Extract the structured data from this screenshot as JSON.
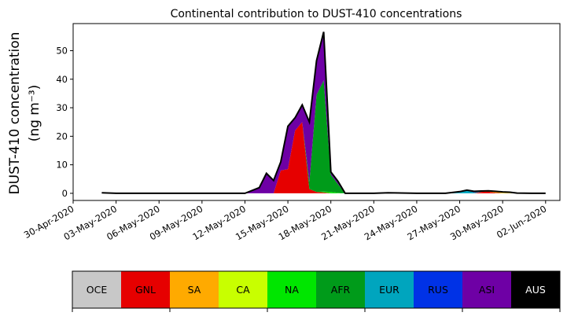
{
  "chart_data": {
    "type": "area",
    "stacked": true,
    "title": "Continental contribution to DUST-410 concentrations",
    "ylabel_line1": "DUST-410 concentration",
    "ylabel_line2": "(ng m⁻³)",
    "xlabel": "",
    "ylim": [
      -2.5,
      59.5
    ],
    "yticks": [
      0,
      10,
      20,
      30,
      40,
      50
    ],
    "xlim": [
      "2020-04-30",
      "2020-06-03"
    ],
    "xticks": [
      "30-Apr-2020",
      "03-May-2020",
      "06-May-2020",
      "09-May-2020",
      "12-May-2020",
      "15-May-2020",
      "18-May-2020",
      "21-May-2020",
      "24-May-2020",
      "27-May-2020",
      "30-May-2020",
      "02-Jun-2020"
    ],
    "x": [
      "2020-05-02",
      "2020-05-03",
      "2020-05-06",
      "2020-05-09",
      "2020-05-12",
      "2020-05-13",
      "2020-05-13 12:00",
      "2020-05-14",
      "2020-05-14 12:00",
      "2020-05-15",
      "2020-05-15 12:00",
      "2020-05-16",
      "2020-05-16 12:00",
      "2020-05-17",
      "2020-05-17 12:00",
      "2020-05-18",
      "2020-05-18 12:00",
      "2020-05-19",
      "2020-05-20",
      "2020-05-21",
      "2020-05-22",
      "2020-05-24",
      "2020-05-26",
      "2020-05-27",
      "2020-05-27 12:00",
      "2020-05-28",
      "2020-05-28 12:00",
      "2020-05-29",
      "2020-05-29 12:00",
      "2020-05-30",
      "2020-05-30 12:00",
      "2020-05-31",
      "2020-06-01",
      "2020-06-02"
    ],
    "series": [
      {
        "name": "OCE",
        "color": "#c8c8c8",
        "values": [
          0,
          0,
          0,
          0,
          0,
          0,
          0,
          0,
          0,
          0,
          0,
          0,
          0,
          0,
          0,
          0,
          0,
          0,
          0,
          0,
          0,
          0,
          0,
          0,
          0,
          0,
          0,
          0,
          0,
          0,
          0,
          0,
          0,
          0
        ]
      },
      {
        "name": "GNL",
        "color": "#e60000",
        "values": [
          0,
          0,
          0,
          0,
          0,
          0,
          0,
          0,
          8,
          8.5,
          22,
          25,
          1.5,
          0.5,
          0.3,
          0,
          0,
          0,
          0,
          0,
          0,
          0,
          0,
          0,
          0,
          0,
          0.5,
          0.6,
          0.2,
          0,
          0,
          0,
          0,
          0
        ]
      },
      {
        "name": "SA",
        "color": "#ffaa00",
        "values": [
          0,
          0,
          0,
          0,
          0,
          0,
          0,
          0,
          0,
          0,
          0,
          0,
          0,
          0,
          0,
          0,
          0,
          0,
          0,
          0,
          0,
          0,
          0,
          0,
          0,
          0,
          0,
          0.2,
          0.3,
          0.2,
          0.1,
          0,
          0,
          0
        ]
      },
      {
        "name": "CA",
        "color": "#c8ff00",
        "values": [
          0,
          0,
          0,
          0,
          0,
          0,
          0,
          0,
          0,
          0,
          0,
          0,
          0,
          0,
          0,
          0,
          0,
          0,
          0,
          0,
          0,
          0,
          0,
          0,
          0,
          0,
          0,
          0,
          0.2,
          0.3,
          0.3,
          0.1,
          0,
          0
        ]
      },
      {
        "name": "NA",
        "color": "#00e600",
        "values": [
          0,
          0,
          0,
          0,
          0,
          0,
          0,
          0,
          0,
          0,
          0,
          0,
          0,
          0,
          0.3,
          0.5,
          0.2,
          0,
          0,
          0,
          0,
          0,
          0,
          0,
          0,
          0,
          0,
          0,
          0,
          0,
          0,
          0,
          0,
          0
        ]
      },
      {
        "name": "AFR",
        "color": "#009b1a",
        "values": [
          0,
          0,
          0,
          0,
          0,
          0,
          0,
          0,
          0,
          0,
          0,
          0,
          2.5,
          34,
          39,
          6,
          3,
          0,
          0,
          0,
          0,
          0,
          0,
          0,
          0,
          0,
          0,
          0,
          0,
          0,
          0,
          0,
          0,
          0
        ]
      },
      {
        "name": "EUR",
        "color": "#00a5be",
        "values": [
          0,
          0,
          0,
          0,
          0,
          0,
          0,
          0,
          0,
          0,
          0,
          0,
          0,
          0,
          0,
          0,
          0,
          0,
          0,
          0,
          0,
          0,
          0,
          0.3,
          1.0,
          0.3,
          0.1,
          0,
          0,
          0,
          0,
          0,
          0,
          0
        ]
      },
      {
        "name": "RUS",
        "color": "#0032e6",
        "values": [
          0,
          0,
          0,
          0,
          0,
          0,
          0,
          0,
          0,
          0,
          0,
          0,
          0,
          0,
          0,
          0,
          0,
          0,
          0,
          0,
          0,
          0,
          0,
          0,
          0,
          0,
          0,
          0,
          0,
          0,
          0,
          0,
          0,
          0
        ]
      },
      {
        "name": "ASI",
        "color": "#6e00a5",
        "values": [
          0.2,
          0,
          0,
          0,
          0,
          2,
          7,
          4.5,
          3,
          15,
          4.5,
          6,
          21,
          12,
          17,
          1,
          1,
          0,
          0,
          0,
          0.2,
          0,
          0,
          0.3,
          0.1,
          0.4,
          0.2,
          0.1,
          0,
          0,
          0,
          0,
          0,
          0
        ]
      },
      {
        "name": "AUS",
        "color": "#000000",
        "values": [
          0,
          0,
          0,
          0,
          0,
          0,
          0,
          0,
          0,
          0,
          0,
          0,
          0,
          0,
          0,
          0,
          0,
          0,
          0,
          0,
          0,
          0,
          0,
          0,
          0,
          0,
          0,
          0,
          0,
          0,
          0,
          0,
          0,
          0
        ]
      }
    ],
    "legend": {
      "placement": "bottom",
      "entries": [
        {
          "label": "OCE",
          "color": "#c8c8c8",
          "text_color": "#000000"
        },
        {
          "label": "GNL",
          "color": "#e60000",
          "text_color": "#000000"
        },
        {
          "label": "SA",
          "color": "#ffaa00",
          "text_color": "#000000"
        },
        {
          "label": "CA",
          "color": "#c8ff00",
          "text_color": "#000000"
        },
        {
          "label": "NA",
          "color": "#00e600",
          "text_color": "#000000"
        },
        {
          "label": "AFR",
          "color": "#009b1a",
          "text_color": "#000000"
        },
        {
          "label": "EUR",
          "color": "#00a5be",
          "text_color": "#000000"
        },
        {
          "label": "RUS",
          "color": "#0032e6",
          "text_color": "#000000"
        },
        {
          "label": "ASI",
          "color": "#6e00a5",
          "text_color": "#000000"
        },
        {
          "label": "AUS",
          "color": "#000000",
          "text_color": "#ffffff"
        }
      ]
    },
    "grid": false
  }
}
